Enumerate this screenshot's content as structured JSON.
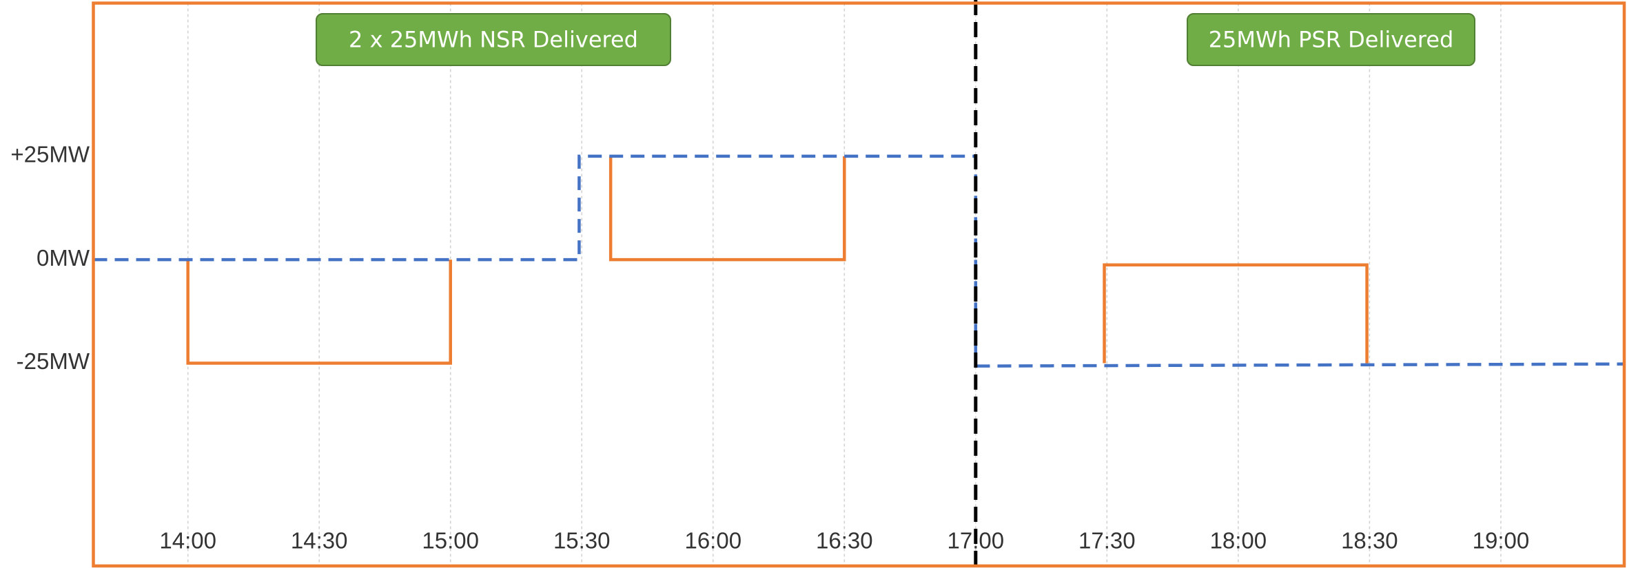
{
  "chart_data": {
    "type": "line",
    "step_segments": true,
    "xlim": [
      13.64,
      19.47
    ],
    "ylim": [
      -74,
      62
    ],
    "xticks": [
      {
        "value": 14,
        "label": "14:00"
      },
      {
        "value": 14.5,
        "label": "14:30"
      },
      {
        "value": 15,
        "label": "15:00"
      },
      {
        "value": 15.5,
        "label": "15:30"
      },
      {
        "value": 16,
        "label": "16:00"
      },
      {
        "value": 16.5,
        "label": "16:30"
      },
      {
        "value": 17,
        "label": "17:00"
      },
      {
        "value": 17.5,
        "label": "17:30"
      },
      {
        "value": 18,
        "label": "18:00"
      },
      {
        "value": 18.5,
        "label": "18:30"
      },
      {
        "value": 19,
        "label": "19:00"
      }
    ],
    "yticks": [
      {
        "value": 25,
        "label": "+25MW"
      },
      {
        "value": 0,
        "label": "0MW"
      },
      {
        "value": -25,
        "label": "-25MW"
      }
    ],
    "grid": true,
    "frame_color": "#ed7d31",
    "series": [
      {
        "color": "#ed7d31",
        "dashed": false,
        "x": [
          14,
          14,
          15,
          15,
          null,
          15.61,
          15.61,
          16.5,
          16.5,
          null,
          17.49,
          17.49,
          18.49,
          18.49
        ],
        "values": [
          0,
          -25,
          -25,
          0,
          null,
          25,
          0,
          0,
          25,
          null,
          -25,
          -1.25,
          -1.25,
          -25
        ]
      },
      {
        "color": "#4472c4",
        "dashed": true,
        "x": [
          13.64,
          15.49,
          15.49,
          17,
          17,
          19.47
        ],
        "values": [
          0,
          0,
          25,
          25,
          -25.7,
          -25.2
        ]
      }
    ],
    "vline": {
      "x": 17,
      "color": "#000000"
    },
    "annotations": [
      {
        "text": "2 x 25MWh NSR Delivered",
        "color": "#70ad47"
      },
      {
        "text": "25MWh PSR Delivered",
        "color": "#70ad47"
      }
    ]
  }
}
